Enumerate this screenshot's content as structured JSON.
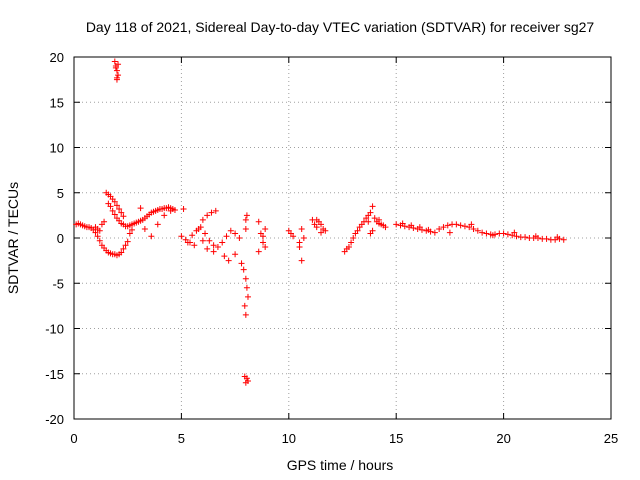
{
  "chart_data": {
    "type": "scatter",
    "title": "Day 118 of 2021, Sidereal Day-to-day VTEC variation (SDTVAR) for receiver sg27",
    "xlabel": "GPS time / hours",
    "ylabel": "SDTVAR / TECUs",
    "xlim": [
      0,
      25
    ],
    "ylim": [
      -20,
      20
    ],
    "xticks": [
      0,
      5,
      10,
      15,
      20,
      25
    ],
    "yticks": [
      -20,
      -15,
      -10,
      -5,
      0,
      5,
      10,
      15,
      20
    ],
    "grid": true,
    "marker": "+",
    "color": "#ff0000",
    "series": [
      {
        "name": "sg27",
        "x": [
          0.1,
          0.2,
          0.3,
          0.4,
          0.5,
          0.6,
          0.7,
          0.8,
          0.9,
          1.0,
          1.1,
          1.2,
          1.3,
          1.4,
          1.5,
          1.6,
          1.7,
          1.8,
          1.9,
          2.0,
          2.1,
          2.2,
          2.3,
          2.4,
          2.5,
          1.5,
          1.6,
          1.7,
          1.8,
          1.9,
          2.0,
          2.1,
          2.2,
          2.3,
          1.6,
          1.7,
          1.8,
          1.9,
          2.0,
          2.1,
          2.2,
          2.3,
          2.4,
          2.5,
          2.6,
          2.7,
          2.8,
          2.9,
          3.0,
          3.1,
          3.2,
          3.3,
          3.4,
          3.5,
          3.6,
          3.7,
          3.8,
          3.9,
          4.0,
          4.1,
          4.2,
          4.3,
          4.4,
          4.5,
          4.6,
          4.7,
          1.9,
          1.95,
          2.0,
          2.05,
          2.0,
          1.95,
          2.05,
          2.0,
          1.0,
          1.1,
          1.2,
          1.3,
          1.4,
          2.6,
          2.7,
          3.1,
          3.3,
          3.6,
          3.9,
          4.2,
          4.5,
          5.0,
          5.2,
          5.4,
          5.6,
          5.8,
          6.0,
          6.2,
          6.4,
          6.6,
          5.1,
          5.3,
          5.5,
          5.7,
          5.9,
          6.1,
          6.3,
          6.5,
          6.7,
          6.9,
          7.1,
          7.3,
          7.5,
          7.7,
          6.0,
          6.2,
          6.5,
          7.0,
          7.2,
          7.5,
          7.8,
          7.9,
          8.0,
          8.05,
          8.1,
          7.95,
          8.0,
          8.05,
          8.1,
          8.0,
          7.95,
          8.0,
          8.05,
          8.0,
          8.6,
          8.7,
          8.8,
          8.9,
          8.6,
          8.8,
          8.9,
          10.0,
          10.1,
          10.2,
          10.5,
          10.6,
          10.7,
          10.5,
          10.6,
          11.2,
          11.3,
          11.4,
          11.5,
          11.6,
          11.7,
          11.1,
          11.3,
          11.5,
          12.6,
          12.7,
          12.8,
          12.9,
          13.0,
          13.1,
          13.2,
          13.3,
          13.4,
          13.5,
          13.6,
          13.7,
          13.8,
          13.9,
          14.0,
          14.1,
          14.2,
          14.3,
          14.4,
          14.5,
          13.8,
          13.9,
          13.7,
          14.2,
          15.0,
          15.2,
          15.4,
          15.6,
          15.8,
          16.0,
          16.2,
          16.4,
          16.6,
          16.8,
          17.0,
          17.2,
          17.4,
          17.6,
          17.8,
          18.0,
          18.2,
          18.4,
          18.6,
          18.8,
          19.0,
          19.2,
          19.4,
          19.6,
          19.8,
          20.0,
          20.2,
          20.4,
          20.6,
          20.8,
          21.0,
          21.2,
          21.4,
          21.6,
          21.8,
          22.0,
          22.2,
          22.4,
          22.6,
          22.8,
          15.3,
          15.7,
          16.1,
          16.5,
          17.5,
          18.5,
          19.5,
          20.5,
          21.5,
          22.5
        ],
        "y": [
          1.5,
          1.6,
          1.5,
          1.4,
          1.3,
          1.2,
          1.2,
          1.1,
          0.9,
          0.6,
          0.2,
          -0.3,
          -0.8,
          -1.1,
          -1.4,
          -1.6,
          -1.7,
          -1.8,
          -1.8,
          -1.9,
          -1.8,
          -1.6,
          -1.2,
          -0.8,
          -0.4,
          5.0,
          4.8,
          4.6,
          4.3,
          4.0,
          3.6,
          3.2,
          2.8,
          2.4,
          3.8,
          3.5,
          3.0,
          2.6,
          2.2,
          1.9,
          1.6,
          1.5,
          1.3,
          1.3,
          1.4,
          1.5,
          1.6,
          1.7,
          1.8,
          1.9,
          2.0,
          2.2,
          2.4,
          2.6,
          2.8,
          2.9,
          3.0,
          3.1,
          3.2,
          3.2,
          3.3,
          3.3,
          3.4,
          3.3,
          3.2,
          3.1,
          19.5,
          19.0,
          18.5,
          18.0,
          17.5,
          18.8,
          19.2,
          17.7,
          1.2,
          1.0,
          0.8,
          1.5,
          1.8,
          0.5,
          0.9,
          3.3,
          1.0,
          0.2,
          1.5,
          2.5,
          3.0,
          0.2,
          -0.2,
          -0.5,
          -0.8,
          1.0,
          2.0,
          2.5,
          2.8,
          3.0,
          3.2,
          -0.5,
          0.3,
          0.8,
          1.2,
          0.5,
          -0.3,
          -0.8,
          -1.0,
          -0.5,
          0.2,
          0.8,
          0.5,
          0.0,
          -0.3,
          -1.2,
          -1.5,
          -2.0,
          -2.5,
          -1.8,
          -2.8,
          -3.5,
          -4.5,
          -5.5,
          -6.5,
          -7.5,
          -8.5,
          -15.5,
          -15.8,
          -16.0,
          -15.3,
          1.0,
          2.5,
          2.0,
          1.8,
          0.5,
          -0.5,
          -1.0,
          -1.5,
          0.2,
          1.0,
          0.8,
          0.5,
          0.2,
          -0.5,
          1.0,
          0.0,
          -1.0,
          -2.5,
          1.5,
          2.0,
          1.8,
          1.5,
          1.0,
          0.8,
          2.0,
          1.2,
          0.6,
          -1.5,
          -1.2,
          -1.0,
          -0.5,
          0.0,
          0.5,
          0.8,
          1.2,
          1.5,
          1.8,
          2.2,
          2.5,
          2.8,
          3.5,
          2.2,
          1.8,
          1.6,
          1.5,
          1.4,
          1.2,
          0.5,
          0.8,
          1.8,
          2.0,
          1.5,
          1.4,
          1.3,
          1.2,
          1.1,
          1.0,
          0.9,
          0.8,
          0.7,
          0.6,
          1.0,
          1.2,
          1.4,
          1.5,
          1.5,
          1.4,
          1.3,
          1.2,
          1.0,
          0.8,
          0.6,
          0.5,
          0.4,
          0.4,
          0.5,
          0.5,
          0.4,
          0.3,
          0.2,
          0.1,
          0.1,
          0.0,
          0.0,
          0.0,
          -0.1,
          -0.1,
          -0.2,
          -0.2,
          -0.1,
          -0.2,
          1.6,
          1.4,
          1.2,
          0.9,
          0.6,
          1.5,
          0.3,
          0.6,
          0.2,
          0.1
        ]
      }
    ]
  }
}
